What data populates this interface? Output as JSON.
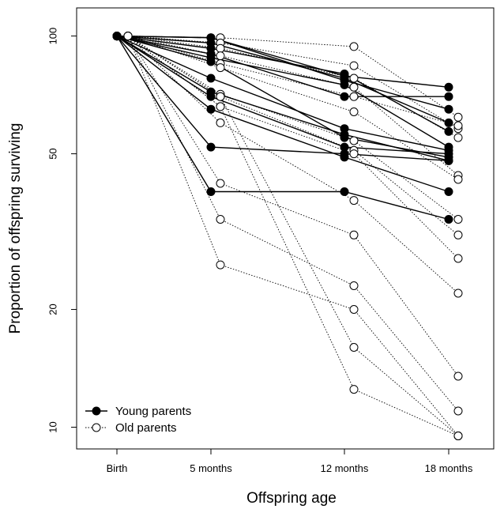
{
  "chart_data": {
    "type": "line",
    "title": "",
    "xlabel": "Offspring age",
    "ylabel": "Proportion of offspring surviving",
    "y_scale": "log",
    "ylim": [
      8.8,
      118
    ],
    "yticks": [
      10,
      20,
      50,
      100
    ],
    "categories": [
      "Birth",
      "5 months",
      "12 months",
      "18 months"
    ],
    "grid": false,
    "legend": {
      "placement": "bottom-left",
      "entries": [
        "Young parents",
        "Old parents"
      ]
    },
    "series": [
      {
        "group": "Young parents",
        "style": {
          "line": "solid",
          "marker": "filled-circle",
          "color": "#000000"
        },
        "lines": [
          [
            100,
            99,
            79,
            74
          ],
          [
            100,
            99,
            77,
            65
          ],
          [
            100,
            96,
            78,
            60
          ],
          [
            100,
            93,
            80,
            57
          ],
          [
            100,
            90,
            70,
            70
          ],
          [
            100,
            88,
            75,
            52
          ],
          [
            100,
            86,
            55,
            49
          ],
          [
            100,
            78,
            58,
            51
          ],
          [
            100,
            72,
            56,
            48
          ],
          [
            100,
            70,
            52,
            50
          ],
          [
            100,
            65,
            49,
            40
          ],
          [
            100,
            52,
            50,
            48
          ],
          [
            100,
            40,
            40,
            34
          ]
        ]
      },
      {
        "group": "Old parents",
        "style": {
          "line": "dotted",
          "marker": "open-circle",
          "color": "#000000"
        },
        "lines": [
          [
            100,
            99,
            94,
            62
          ],
          [
            100,
            96,
            84,
            58
          ],
          [
            100,
            93,
            78,
            55
          ],
          [
            100,
            89,
            74,
            44
          ],
          [
            100,
            85,
            70,
            59
          ],
          [
            100,
            83,
            64,
            43
          ],
          [
            100,
            71,
            54,
            34
          ],
          [
            100,
            70,
            51,
            31
          ],
          [
            100,
            66,
            50,
            27
          ],
          [
            100,
            60,
            38,
            22
          ],
          [
            100,
            42,
            31,
            13.5
          ],
          [
            100,
            34,
            23,
            11
          ],
          [
            100,
            26,
            20,
            9.5
          ],
          [
            100,
            70,
            16,
            9.5
          ],
          [
            100,
            66,
            12.5,
            9.5
          ]
        ]
      }
    ]
  }
}
